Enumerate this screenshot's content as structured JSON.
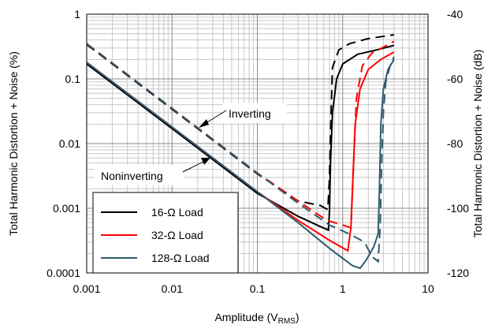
{
  "chart_data": {
    "type": "line",
    "x_scale": "log",
    "y_scale": "log",
    "xlim": [
      0.001,
      10
    ],
    "ylim": [
      0.0001,
      1
    ],
    "y2lim": [
      -120,
      -40
    ],
    "xticks": [
      "0.001",
      "0.01",
      "0.1",
      "1",
      "10"
    ],
    "yticks": [
      "0.0001",
      "0.001",
      "0.01",
      "0.1",
      "1"
    ],
    "y2ticks": [
      "-120",
      "-100",
      "-80",
      "-60",
      "-40"
    ],
    "xlabel_main": "Amplitude (V",
    "xlabel_sub": "RMS",
    "xlabel_end": ")",
    "ylabel": "Total Harmonic Distortion + Noise (%)",
    "y2label": "Total Harmonic Distortion + Noise (dB)",
    "grid": true,
    "legend_position": "bottom-left",
    "annotations": [
      "Inverting",
      "Noninverting"
    ],
    "series": [
      {
        "name": "16-Ω Load",
        "color": "#000000",
        "noninverting": [
          [
            0.001,
            0.17
          ],
          [
            0.01,
            0.017
          ],
          [
            0.1,
            0.0017
          ],
          [
            0.3,
            0.00075
          ],
          [
            0.55,
            0.00052
          ],
          [
            0.68,
            0.00046
          ],
          [
            0.7,
            0.0009
          ],
          [
            0.72,
            0.005
          ],
          [
            0.76,
            0.03
          ],
          [
            0.85,
            0.1
          ],
          [
            1.0,
            0.17
          ],
          [
            1.5,
            0.24
          ],
          [
            2.5,
            0.28
          ],
          [
            4.0,
            0.33
          ]
        ],
        "inverting": [
          [
            0.001,
            0.34
          ],
          [
            0.01,
            0.034
          ],
          [
            0.1,
            0.0034
          ],
          [
            0.3,
            0.0013
          ],
          [
            0.55,
            0.0011
          ],
          [
            0.67,
            0.00095
          ],
          [
            0.7,
            0.003
          ],
          [
            0.73,
            0.03
          ],
          [
            0.76,
            0.15
          ],
          [
            0.9,
            0.28
          ],
          [
            1.2,
            0.35
          ],
          [
            2.0,
            0.42
          ],
          [
            4.0,
            0.48
          ]
        ]
      },
      {
        "name": "32-Ω Load",
        "color": "#ff0000",
        "noninverting": [
          [
            0.001,
            0.18
          ],
          [
            0.01,
            0.018
          ],
          [
            0.1,
            0.0018
          ],
          [
            0.3,
            0.00065
          ],
          [
            0.7,
            0.00032
          ],
          [
            1.15,
            0.00022
          ],
          [
            1.25,
            0.0005
          ],
          [
            1.32,
            0.003
          ],
          [
            1.4,
            0.02
          ],
          [
            1.6,
            0.07
          ],
          [
            2.0,
            0.14
          ],
          [
            2.8,
            0.2
          ],
          [
            4.0,
            0.26
          ]
        ],
        "inverting": [
          [
            0.001,
            0.35
          ],
          [
            0.01,
            0.035
          ],
          [
            0.1,
            0.0035
          ],
          [
            0.3,
            0.0013
          ],
          [
            0.65,
            0.00065
          ],
          [
            1.0,
            0.00055
          ],
          [
            1.25,
            0.0005
          ],
          [
            1.32,
            0.003
          ],
          [
            1.45,
            0.05
          ],
          [
            1.7,
            0.16
          ],
          [
            2.2,
            0.25
          ],
          [
            3.0,
            0.31
          ],
          [
            4.0,
            0.38
          ]
        ]
      },
      {
        "name": "128-Ω Load",
        "color": "#2f5b6e",
        "noninverting": [
          [
            0.001,
            0.18
          ],
          [
            0.01,
            0.018
          ],
          [
            0.1,
            0.0018
          ],
          [
            0.3,
            0.0006
          ],
          [
            0.7,
            0.00024
          ],
          [
            1.3,
            0.00013
          ],
          [
            1.6,
            0.000118
          ],
          [
            1.9,
            0.00016
          ],
          [
            2.3,
            0.00025
          ],
          [
            2.6,
            0.0004
          ],
          [
            2.7,
            0.002
          ],
          [
            2.8,
            0.02
          ],
          [
            3.0,
            0.07
          ],
          [
            3.4,
            0.14
          ],
          [
            4.0,
            0.2
          ]
        ],
        "inverting": [
          [
            0.001,
            0.35
          ],
          [
            0.01,
            0.035
          ],
          [
            0.1,
            0.0035
          ],
          [
            0.3,
            0.0012
          ],
          [
            0.7,
            0.00055
          ],
          [
            1.2,
            0.0004
          ],
          [
            1.8,
            0.0003
          ],
          [
            2.2,
            0.00018
          ],
          [
            2.6,
            0.00015
          ],
          [
            2.75,
            0.0005
          ],
          [
            2.85,
            0.004
          ],
          [
            3.0,
            0.03
          ],
          [
            3.2,
            0.09
          ],
          [
            3.6,
            0.16
          ],
          [
            4.0,
            0.22
          ]
        ]
      }
    ]
  }
}
